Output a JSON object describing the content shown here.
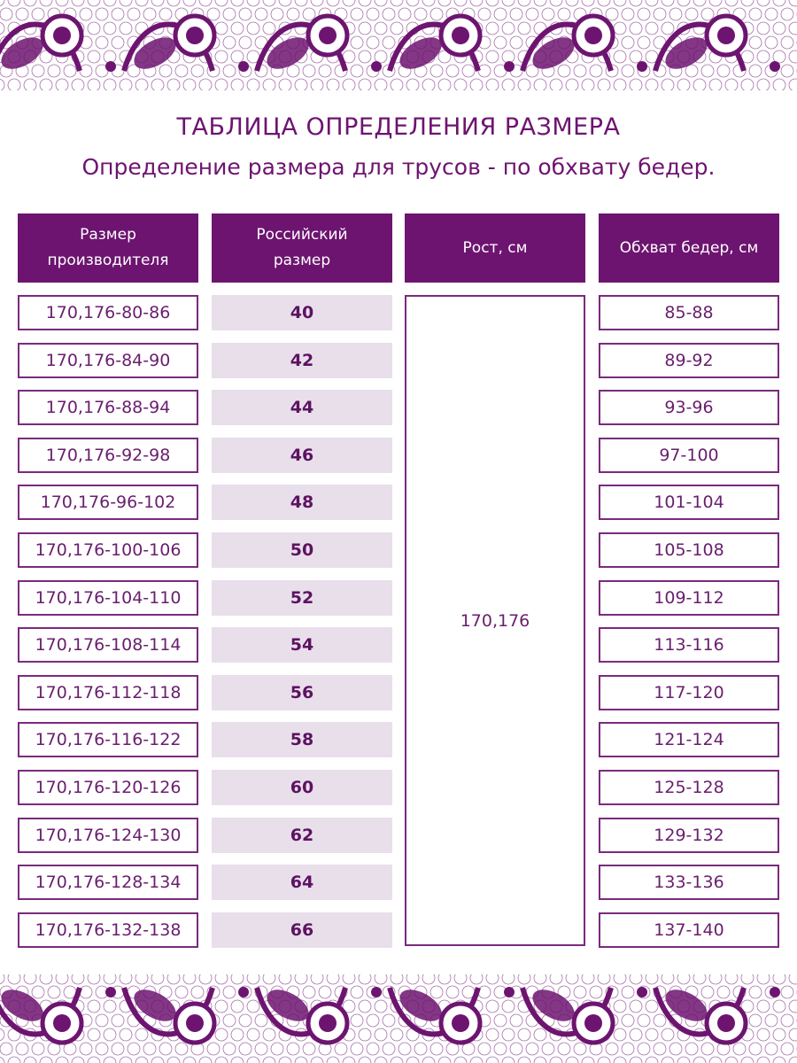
{
  "title": "ТАБЛИЦА ОПРЕДЕЛЕНИЯ РАЗМЕРА",
  "subtitle": "Определение размера для трусов - по обхвату бедер.",
  "colors": {
    "accent": "#6d1470",
    "light_fill": "#e8dfeb",
    "text": "#6a1e6e"
  },
  "headers": [
    "Размер\nпроизводителя",
    "Российский\nразмер",
    "Рост, см",
    "Обхват бедер, см"
  ],
  "height_value": "170,176",
  "rows": [
    {
      "maker": "170,176-80-86",
      "ru": "40",
      "hips": "85-88"
    },
    {
      "maker": "170,176-84-90",
      "ru": "42",
      "hips": "89-92"
    },
    {
      "maker": "170,176-88-94",
      "ru": "44",
      "hips": "93-96"
    },
    {
      "maker": "170,176-92-98",
      "ru": "46",
      "hips": "97-100"
    },
    {
      "maker": "170,176-96-102",
      "ru": "48",
      "hips": "101-104"
    },
    {
      "maker": "170,176-100-106",
      "ru": "50",
      "hips": "105-108"
    },
    {
      "maker": "170,176-104-110",
      "ru": "52",
      "hips": "109-112"
    },
    {
      "maker": "170,176-108-114",
      "ru": "54",
      "hips": "113-116"
    },
    {
      "maker": "170,176-112-118",
      "ru": "56",
      "hips": "117-120"
    },
    {
      "maker": "170,176-116-122",
      "ru": "58",
      "hips": "121-124"
    },
    {
      "maker": "170,176-120-126",
      "ru": "60",
      "hips": "125-128"
    },
    {
      "maker": "170,176-124-130",
      "ru": "62",
      "hips": "129-132"
    },
    {
      "maker": "170,176-128-134",
      "ru": "64",
      "hips": "133-136"
    },
    {
      "maker": "170,176-132-138",
      "ru": "66",
      "hips": "137-140"
    }
  ]
}
